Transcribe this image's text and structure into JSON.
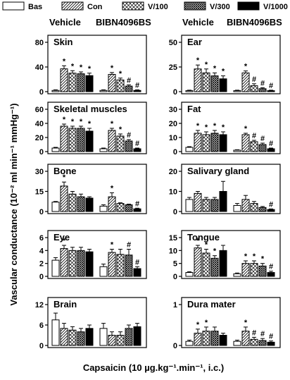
{
  "legend": [
    {
      "name": "Bas",
      "pattern": "open"
    },
    {
      "name": "Con",
      "pattern": "hatch"
    },
    {
      "name": "V/100",
      "pattern": "cross"
    },
    {
      "name": "V/300",
      "pattern": "dense"
    },
    {
      "name": "V/1000",
      "pattern": "solid"
    }
  ],
  "groups": [
    "Vehicle",
    "BIBN4096BS"
  ],
  "ylabel": "Vascular conductance (10⁻² ml min⁻¹ mmHg⁻¹)",
  "xlabel": "Capsaicin (10 µg.kg⁻¹.min⁻¹, i.c.)",
  "chart_data": [
    {
      "type": "bar",
      "title": "Skin",
      "ylim": [
        0,
        80
      ],
      "yticks": [
        0,
        40,
        80
      ],
      "series": [
        {
          "values": [
            2,
            2
          ],
          "errors": [
            1,
            1
          ],
          "markers": [
            null,
            null
          ]
        },
        {
          "values": [
            37,
            28
          ],
          "errors": [
            5,
            3
          ],
          "markers": [
            "*",
            "*"
          ]
        },
        {
          "values": [
            30,
            19
          ],
          "errors": [
            4,
            3
          ],
          "markers": [
            "*",
            "*"
          ]
        },
        {
          "values": [
            29,
            9
          ],
          "errors": [
            3,
            2
          ],
          "markers": [
            "*",
            "#"
          ]
        },
        {
          "values": [
            26,
            2
          ],
          "errors": [
            4,
            1
          ],
          "markers": [
            "*",
            "#"
          ]
        }
      ]
    },
    {
      "type": "bar",
      "title": "Ear",
      "ylim": [
        0,
        50
      ],
      "yticks": [
        0,
        25,
        50
      ],
      "series": [
        {
          "values": [
            1,
            1
          ],
          "errors": [
            0.5,
            0.5
          ],
          "markers": [
            null,
            null
          ]
        },
        {
          "values": [
            23,
            19
          ],
          "errors": [
            4,
            2
          ],
          "markers": [
            "*",
            "*"
          ]
        },
        {
          "values": [
            19,
            6
          ],
          "errors": [
            4,
            2
          ],
          "markers": [
            "*",
            "#"
          ]
        },
        {
          "values": [
            16,
            3
          ],
          "errors": [
            3,
            1
          ],
          "markers": [
            "*",
            "#"
          ]
        },
        {
          "values": [
            13,
            1
          ],
          "errors": [
            3,
            0.5
          ],
          "markers": [
            "*",
            "#"
          ]
        }
      ]
    },
    {
      "type": "bar",
      "title": "Skeletal muscles",
      "ylim": [
        0,
        60
      ],
      "yticks": [
        0,
        20,
        40,
        60
      ],
      "series": [
        {
          "values": [
            5,
            4
          ],
          "errors": [
            1,
            1
          ],
          "markers": [
            null,
            null
          ]
        },
        {
          "values": [
            36,
            30
          ],
          "errors": [
            3,
            3
          ],
          "markers": [
            "*",
            "*"
          ]
        },
        {
          "values": [
            33,
            22
          ],
          "errors": [
            3,
            3
          ],
          "markers": [
            "*",
            "*"
          ]
        },
        {
          "values": [
            33,
            15
          ],
          "errors": [
            3,
            2
          ],
          "markers": [
            "*",
            "#"
          ]
        },
        {
          "values": [
            29,
            4
          ],
          "errors": [
            4,
            1
          ],
          "markers": [
            "*",
            "#"
          ]
        }
      ]
    },
    {
      "type": "bar",
      "title": "Fat",
      "ylim": [
        0,
        30
      ],
      "yticks": [
        0,
        10,
        20,
        30
      ],
      "series": [
        {
          "values": [
            3,
            1
          ],
          "errors": [
            0.5,
            0.3
          ],
          "markers": [
            null,
            null
          ]
        },
        {
          "values": [
            13,
            12
          ],
          "errors": [
            2,
            1
          ],
          "markers": [
            "*",
            "*"
          ]
        },
        {
          "values": [
            12,
            7
          ],
          "errors": [
            2,
            1
          ],
          "markers": [
            "*",
            "#"
          ]
        },
        {
          "values": [
            13,
            5
          ],
          "errors": [
            2,
            1
          ],
          "markers": [
            "*",
            "#"
          ]
        },
        {
          "values": [
            12,
            2
          ],
          "errors": [
            2,
            0.5
          ],
          "markers": [
            "*",
            "#"
          ]
        }
      ]
    },
    {
      "type": "bar",
      "title": "Bone",
      "ylim": [
        0,
        30
      ],
      "yticks": [
        0,
        15,
        30
      ],
      "series": [
        {
          "values": [
            7,
            4
          ],
          "errors": [
            0.5,
            1
          ],
          "markers": [
            null,
            null
          ]
        },
        {
          "values": [
            19,
            11
          ],
          "errors": [
            3,
            3
          ],
          "markers": [
            "*",
            "*"
          ]
        },
        {
          "values": [
            13,
            6
          ],
          "errors": [
            2,
            0.5
          ],
          "markers": [
            null,
            null
          ]
        },
        {
          "values": [
            11,
            5
          ],
          "errors": [
            2,
            0.5
          ],
          "markers": [
            null,
            null
          ]
        },
        {
          "values": [
            10,
            2
          ],
          "errors": [
            1,
            0.5
          ],
          "markers": [
            null,
            "#"
          ]
        }
      ]
    },
    {
      "type": "bar",
      "title": "Salivary gland",
      "ylim": [
        0,
        20
      ],
      "yticks": [
        0,
        10,
        20
      ],
      "series": [
        {
          "values": [
            6,
            3
          ],
          "errors": [
            1,
            1
          ],
          "markers": [
            null,
            null
          ]
        },
        {
          "values": [
            9,
            6
          ],
          "errors": [
            1,
            2
          ],
          "markers": [
            null,
            null
          ]
        },
        {
          "values": [
            6,
            4
          ],
          "errors": [
            1,
            1
          ],
          "markers": [
            null,
            null
          ]
        },
        {
          "values": [
            6,
            2
          ],
          "errors": [
            1,
            0.5
          ],
          "markers": [
            null,
            null
          ]
        },
        {
          "values": [
            10,
            1
          ],
          "errors": [
            5,
            0.3
          ],
          "markers": [
            null,
            "#"
          ]
        }
      ]
    },
    {
      "type": "bar",
      "title": "Eye",
      "ylim": [
        0,
        6
      ],
      "yticks": [
        0,
        2,
        4,
        6
      ],
      "series": [
        {
          "values": [
            2.5,
            1.5
          ],
          "errors": [
            0.4,
            0.4
          ],
          "markers": [
            null,
            null
          ]
        },
        {
          "values": [
            4.3,
            3.7
          ],
          "errors": [
            0.5,
            0.5
          ],
          "markers": [
            "*",
            "*"
          ]
        },
        {
          "values": [
            4,
            3.4
          ],
          "errors": [
            0.5,
            0.8
          ],
          "markers": [
            null,
            null
          ]
        },
        {
          "values": [
            4,
            3.3
          ],
          "errors": [
            0.5,
            0.9
          ],
          "markers": [
            null,
            "#"
          ]
        },
        {
          "values": [
            3.8,
            1.2
          ],
          "errors": [
            0.4,
            0.3
          ],
          "markers": [
            null,
            "#"
          ]
        }
      ]
    },
    {
      "type": "bar",
      "title": "Tongue",
      "ylim": [
        0,
        15
      ],
      "yticks": [
        0,
        5,
        10,
        15
      ],
      "series": [
        {
          "values": [
            1.5,
            1
          ],
          "errors": [
            0.3,
            0.3
          ],
          "markers": [
            null,
            null
          ]
        },
        {
          "values": [
            11,
            5
          ],
          "errors": [
            1,
            1
          ],
          "markers": [
            "*",
            "*"
          ]
        },
        {
          "values": [
            9,
            5
          ],
          "errors": [
            1.5,
            1
          ],
          "markers": [
            "*",
            "*"
          ]
        },
        {
          "values": [
            7,
            4
          ],
          "errors": [
            1,
            1
          ],
          "markers": [
            "*",
            "*"
          ]
        },
        {
          "values": [
            10,
            1.5
          ],
          "errors": [
            2,
            0.5
          ],
          "markers": [
            null,
            "#"
          ]
        }
      ]
    },
    {
      "type": "bar",
      "title": "Brain",
      "ylim": [
        0,
        12
      ],
      "yticks": [
        0,
        6,
        12
      ],
      "series": [
        {
          "values": [
            7.5,
            5
          ],
          "errors": [
            2,
            1.5
          ],
          "markers": [
            null,
            null
          ]
        },
        {
          "values": [
            5,
            3
          ],
          "errors": [
            1.5,
            1
          ],
          "markers": [
            null,
            null
          ]
        },
        {
          "values": [
            4.5,
            3
          ],
          "errors": [
            1,
            1
          ],
          "markers": [
            null,
            null
          ]
        },
        {
          "values": [
            4,
            5
          ],
          "errors": [
            1,
            1
          ],
          "markers": [
            null,
            null
          ]
        },
        {
          "values": [
            5,
            5.5
          ],
          "errors": [
            1,
            1
          ],
          "markers": [
            null,
            null
          ]
        }
      ]
    },
    {
      "type": "bar",
      "title": "Dura mater",
      "ylim": [
        0,
        1
      ],
      "yticks": [
        0,
        1
      ],
      "series": [
        {
          "values": [
            0.1,
            0.1
          ],
          "errors": [
            0.03,
            0.03
          ],
          "markers": [
            null,
            null
          ]
        },
        {
          "values": [
            0.3,
            0.35
          ],
          "errors": [
            0.1,
            0.1
          ],
          "markers": [
            "*",
            "*"
          ]
        },
        {
          "values": [
            0.35,
            0.15
          ],
          "errors": [
            0.1,
            0.05
          ],
          "markers": [
            "*",
            "#"
          ]
        },
        {
          "values": [
            0.35,
            0.12
          ],
          "errors": [
            0.1,
            0.05
          ],
          "markers": [
            null,
            "#"
          ]
        },
        {
          "values": [
            0.25,
            0.08
          ],
          "errors": [
            0.05,
            0.03
          ],
          "markers": [
            null,
            "#"
          ]
        }
      ]
    }
  ]
}
